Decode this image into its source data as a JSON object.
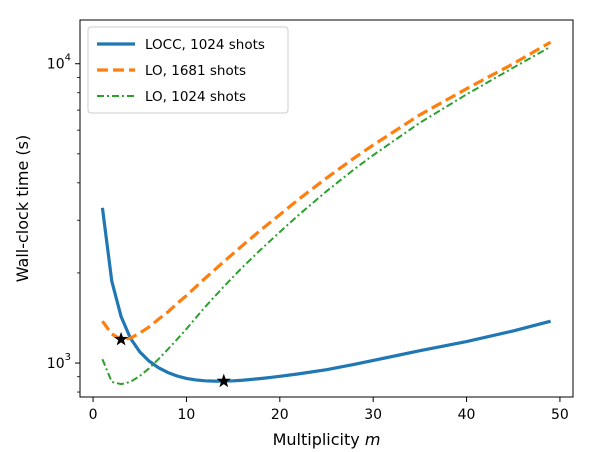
{
  "chart_data": {
    "type": "line",
    "xlabel": "Multiplicity",
    "xlabel_var": "m",
    "ylabel": "Wall-clock time (s)",
    "xlim": [
      -1.4,
      51.4
    ],
    "ylim": [
      770,
      14000
    ],
    "yscale": "log",
    "xticks": [
      0,
      10,
      20,
      30,
      40,
      50
    ],
    "xtick_labels": [
      "0",
      "10",
      "20",
      "30",
      "40",
      "50"
    ],
    "yticks_major": [
      1000,
      10000
    ],
    "ytick_labels": [
      {
        "base": "10",
        "exp": "3"
      },
      {
        "base": "10",
        "exp": "4"
      }
    ],
    "yticks_minor": [
      800,
      900,
      2000,
      3000,
      4000,
      5000,
      6000,
      7000,
      8000,
      9000
    ],
    "grid": false,
    "legend_position": "top-left",
    "series": [
      {
        "name": "LOCC, 1024 shots",
        "color": "#1f77b4",
        "style": "solid",
        "x": [
          1,
          2,
          3,
          4,
          5,
          6,
          7,
          8,
          9,
          10,
          11,
          12,
          13,
          14,
          15,
          16,
          17,
          18,
          19,
          20,
          22,
          25,
          28,
          30,
          35,
          40,
          45,
          49
        ],
        "y": [
          3300,
          1880,
          1430,
          1210,
          1090,
          1015,
          965,
          930,
          905,
          888,
          878,
          872,
          870,
          870,
          872,
          876,
          882,
          888,
          895,
          903,
          920,
          950,
          990,
          1020,
          1100,
          1180,
          1280,
          1380
        ]
      },
      {
        "name": "LO, 1681 shots",
        "color": "#ff7f0e",
        "style": "dashed",
        "x": [
          1,
          2,
          3,
          4,
          5,
          6,
          7,
          8,
          9,
          10,
          12,
          14,
          16,
          18,
          20,
          22,
          25,
          28,
          30,
          35,
          40,
          45,
          49
        ],
        "y": [
          1380,
          1250,
          1200,
          1210,
          1260,
          1320,
          1400,
          1480,
          1580,
          1680,
          1920,
          2180,
          2470,
          2790,
          3130,
          3520,
          4150,
          4850,
          5350,
          6750,
          8250,
          10000,
          11800
        ]
      },
      {
        "name": "LO, 1024 shots",
        "color": "#2ca02c",
        "style": "dashdot",
        "x": [
          1,
          2,
          3,
          4,
          5,
          6,
          7,
          8,
          9,
          10,
          12,
          14,
          16,
          18,
          20,
          22,
          25,
          28,
          30,
          35,
          40,
          45,
          49
        ],
        "y": [
          1030,
          865,
          850,
          865,
          905,
          960,
          1030,
          1110,
          1200,
          1300,
          1540,
          1800,
          2090,
          2400,
          2740,
          3120,
          3750,
          4450,
          4950,
          6350,
          7900,
          9700,
          11400
        ]
      }
    ],
    "markers": [
      {
        "x": 3,
        "y": 1200,
        "symbol": "star",
        "color": "#000000"
      },
      {
        "x": 14,
        "y": 870,
        "symbol": "star",
        "color": "#000000"
      }
    ]
  }
}
